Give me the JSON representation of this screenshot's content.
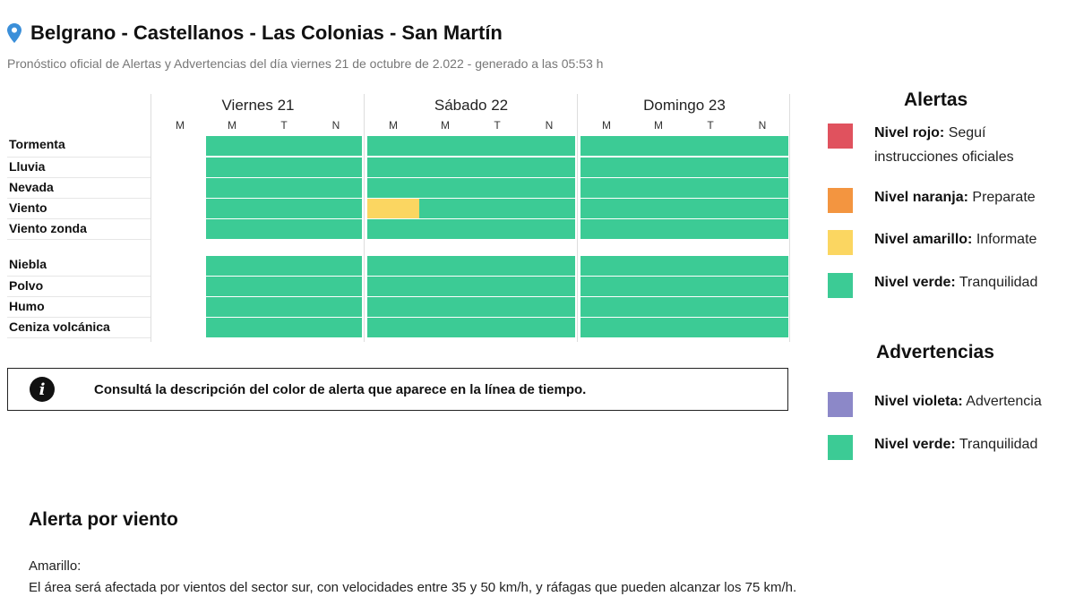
{
  "header": {
    "title": "Belgrano - Castellanos - Las Colonias - San Martín",
    "subtitle": "Pronóstico oficial de Alertas y Advertencias del día viernes 21 de octubre de 2.022 - generado a las 05:53 h",
    "icon": "location-pin-icon"
  },
  "grid": {
    "days": [
      {
        "label": "Viernes 21",
        "slots": [
          "M",
          "M",
          "T",
          "N"
        ]
      },
      {
        "label": "Sábado 22",
        "slots": [
          "M",
          "M",
          "T",
          "N"
        ]
      },
      {
        "label": "Domingo 23",
        "slots": [
          "M",
          "M",
          "T",
          "N"
        ]
      }
    ],
    "alert_rows": [
      {
        "label": "Tormenta",
        "levels": [
          "none",
          "verde",
          "verde",
          "verde",
          "verde",
          "verde",
          "verde",
          "verde",
          "verde",
          "verde",
          "verde",
          "verde"
        ]
      },
      {
        "label": "Lluvia",
        "levels": [
          "none",
          "verde",
          "verde",
          "verde",
          "verde",
          "verde",
          "verde",
          "verde",
          "verde",
          "verde",
          "verde",
          "verde"
        ]
      },
      {
        "label": "Nevada",
        "levels": [
          "none",
          "verde",
          "verde",
          "verde",
          "verde",
          "verde",
          "verde",
          "verde",
          "verde",
          "verde",
          "verde",
          "verde"
        ]
      },
      {
        "label": "Viento",
        "levels": [
          "none",
          "verde",
          "verde",
          "verde",
          "amarillo",
          "verde",
          "verde",
          "verde",
          "verde",
          "verde",
          "verde",
          "verde"
        ]
      },
      {
        "label": "Viento zonda",
        "levels": [
          "none",
          "verde",
          "verde",
          "verde",
          "verde",
          "verde",
          "verde",
          "verde",
          "verde",
          "verde",
          "verde",
          "verde"
        ]
      }
    ],
    "warning_rows": [
      {
        "label": "Niebla",
        "levels": [
          "none",
          "verde",
          "verde",
          "verde",
          "verde",
          "verde",
          "verde",
          "verde",
          "verde",
          "verde",
          "verde",
          "verde"
        ]
      },
      {
        "label": "Polvo",
        "levels": [
          "none",
          "verde",
          "verde",
          "verde",
          "verde",
          "verde",
          "verde",
          "verde",
          "verde",
          "verde",
          "verde",
          "verde"
        ]
      },
      {
        "label": "Humo",
        "levels": [
          "none",
          "verde",
          "verde",
          "verde",
          "verde",
          "verde",
          "verde",
          "verde",
          "verde",
          "verde",
          "verde",
          "verde"
        ]
      },
      {
        "label": "Ceniza volcánica",
        "levels": [
          "none",
          "verde",
          "verde",
          "verde",
          "verde",
          "verde",
          "verde",
          "verde",
          "verde",
          "verde",
          "verde",
          "verde"
        ]
      }
    ]
  },
  "info": {
    "icon": "info-icon",
    "text": "Consultá la descripción del color de alerta que aparece en la línea de tiempo."
  },
  "legend": {
    "alerts_title": "Alertas",
    "alerts": [
      {
        "level": "Nivel rojo:",
        "desc": "Seguí instrucciones oficiales",
        "color": "#e0525e"
      },
      {
        "level": "Nivel naranja:",
        "desc": "Preparate",
        "color": "#f39540"
      },
      {
        "level": "Nivel amarillo:",
        "desc": "Informate",
        "color": "#fbd661"
      },
      {
        "level": "Nivel verde:",
        "desc": "Tranquilidad",
        "color": "#3ccb95"
      }
    ],
    "warnings_title": "Advertencias",
    "warnings": [
      {
        "level": "Nivel violeta:",
        "desc": "Advertencia",
        "color": "#8c88c8"
      },
      {
        "level": "Nivel verde:",
        "desc": "Tranquilidad",
        "color": "#3ccb95"
      }
    ]
  },
  "alert_detail": {
    "title": "Alerta por viento",
    "level": "Amarillo:",
    "description": "El área será afectada por vientos del sector sur, con velocidades entre 35 y 50 km/h, y ráfagas que pueden alcanzar los 75 km/h."
  },
  "colors": {
    "verde": "#3ccb95",
    "amarillo": "#fbd661"
  }
}
